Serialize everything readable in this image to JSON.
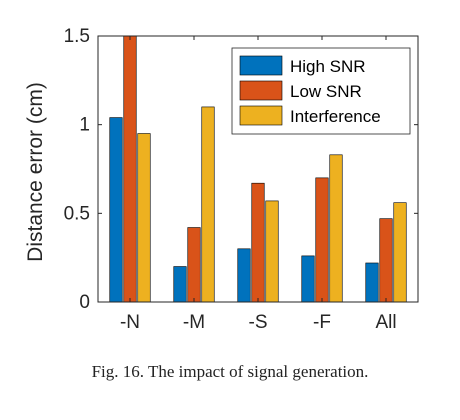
{
  "caption": "Fig. 16.   The impact of signal generation.",
  "chart_data": {
    "type": "bar",
    "categories": [
      "-N",
      "-M",
      "-S",
      "-F",
      "All"
    ],
    "series": [
      {
        "name": "High SNR",
        "values": [
          1.04,
          0.2,
          0.3,
          0.26,
          0.22
        ],
        "color": "#0072BD"
      },
      {
        "name": "Low SNR",
        "values": [
          1.5,
          0.42,
          0.67,
          0.7,
          0.47
        ],
        "color": "#D95319"
      },
      {
        "name": "Interference",
        "values": [
          0.95,
          1.1,
          0.57,
          0.83,
          0.56
        ],
        "color": "#EDB120"
      }
    ],
    "title": "",
    "xlabel": "",
    "ylabel": "Distance error (cm)",
    "ylim": [
      0,
      1.5
    ],
    "yticks": [
      0,
      0.5,
      1,
      1.5
    ],
    "ytick_labels": [
      "0",
      "0.5",
      "1",
      "1.5"
    ],
    "grid": false,
    "legend_position": "top-right"
  }
}
